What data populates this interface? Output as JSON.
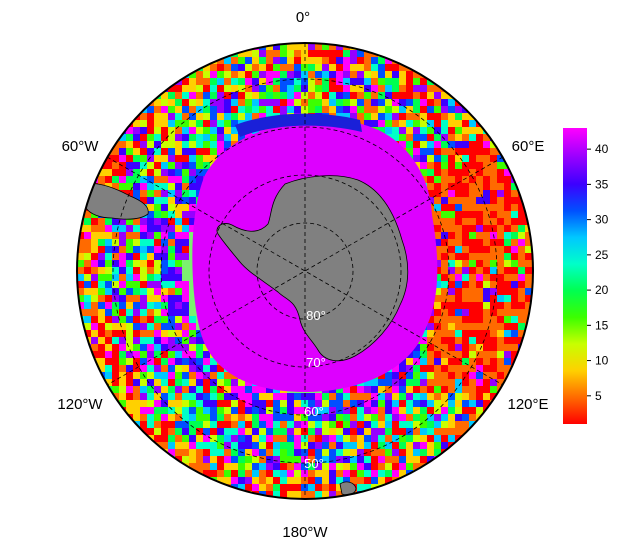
{
  "map": {
    "projection": "south-polar-stereographic",
    "longitude_labels": {
      "top": "0°",
      "upper_left": "60°W",
      "upper_right": "60°E",
      "lower_left": "120°W",
      "lower_right": "120°E",
      "bottom": "180°W"
    },
    "latitude_labels": [
      "80°",
      "70°",
      "60°",
      "50°"
    ],
    "colors": {
      "land": "#808080",
      "ice_high": "#dd00ff",
      "outline": "#000000",
      "graticule": "#000000"
    }
  },
  "colorbar": {
    "ticks": [
      "40",
      "35",
      "30",
      "25",
      "20",
      "15",
      "10",
      "5"
    ],
    "min": 1,
    "max": 43,
    "palette": [
      "#ff0000",
      "#ff6a00",
      "#ffd000",
      "#c8ff00",
      "#3cff00",
      "#00ff50",
      "#00ffc8",
      "#00c8ff",
      "#0050ff",
      "#3c00ff",
      "#9600ff",
      "#ff00ff"
    ]
  }
}
